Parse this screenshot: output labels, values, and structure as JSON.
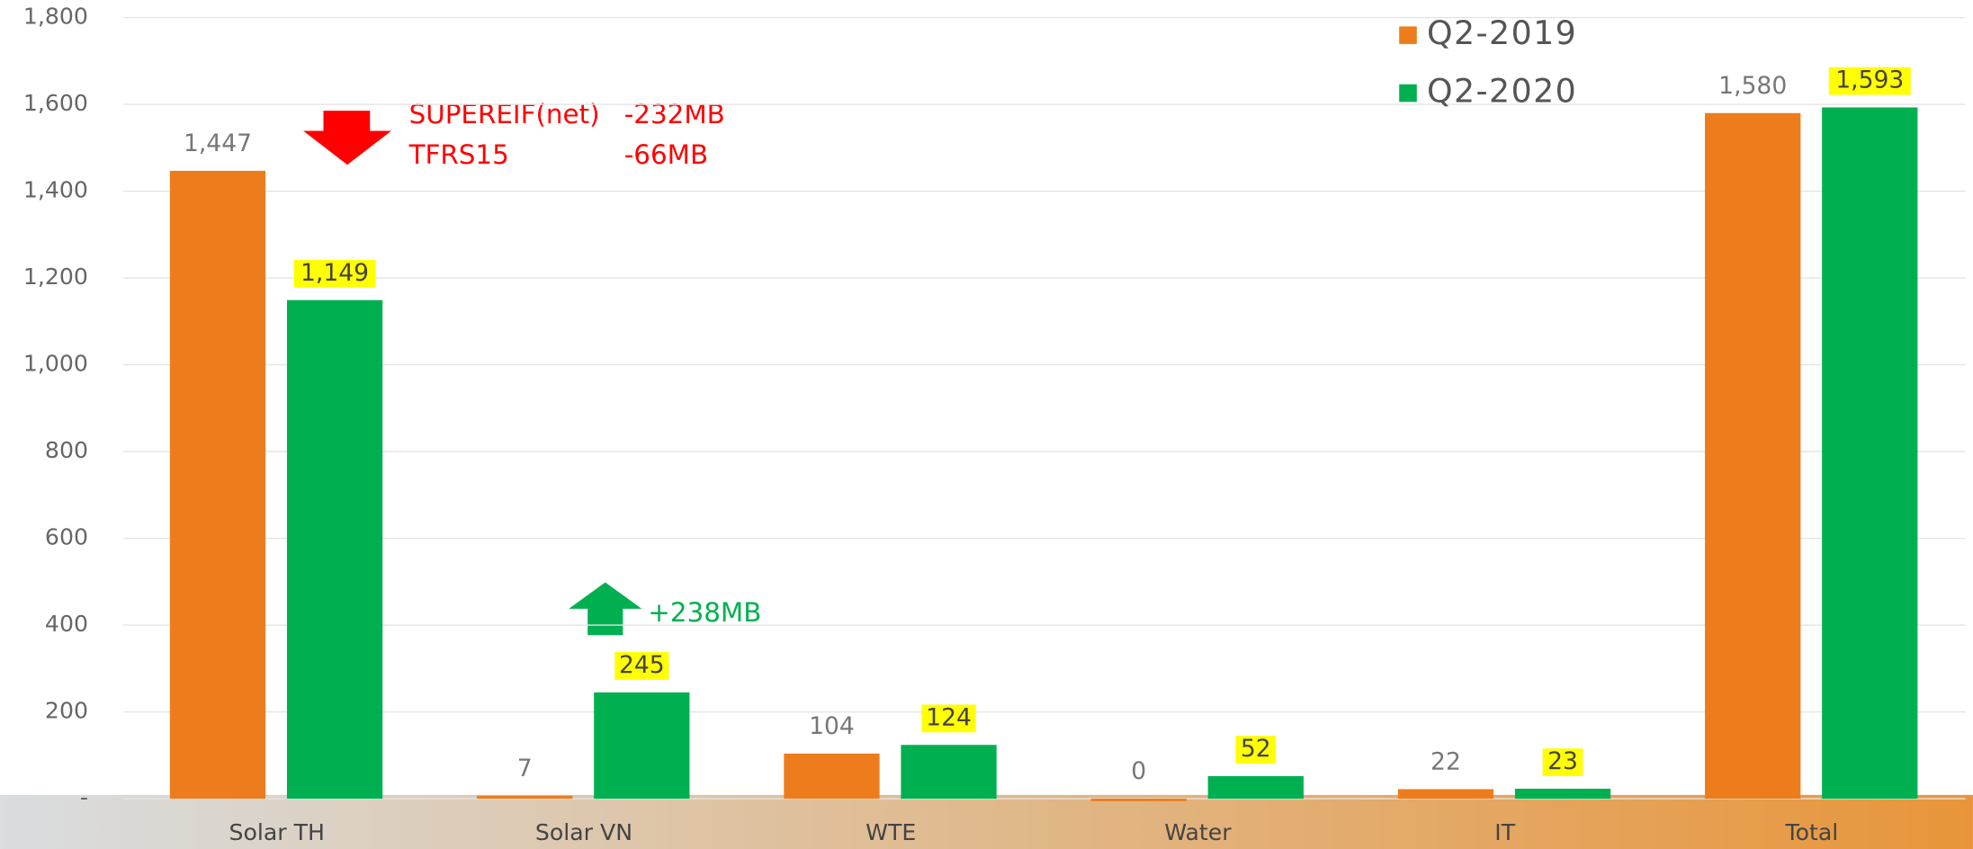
{
  "chart_data": {
    "type": "bar",
    "categories": [
      "Solar TH",
      "Solar VN",
      "WTE",
      "Water",
      "IT",
      "Total"
    ],
    "series": [
      {
        "name": "Q2-2019",
        "color": "#ed7d1c",
        "values": [
          1447,
          7,
          104,
          0,
          22,
          1580
        ],
        "value_labels": [
          "1,447",
          "7",
          "104",
          "0",
          "22",
          "1,580"
        ]
      },
      {
        "name": "Q2-2020",
        "color": "#00b050",
        "values": [
          1149,
          245,
          124,
          52,
          23,
          1593
        ],
        "value_labels": [
          "1,149",
          "245",
          "124",
          "52",
          "23",
          "1,593"
        ]
      }
    ],
    "ylim": [
      0,
      1800
    ],
    "yticks": [
      {
        "value": 0,
        "label": "-"
      },
      200,
      400,
      600,
      800,
      {
        "value": 1000,
        "label": "1,000"
      },
      {
        "value": 1200,
        "label": "1,200"
      },
      {
        "value": 1400,
        "label": "1,400"
      },
      {
        "value": 1600,
        "label": "1,600"
      },
      {
        "value": 1800,
        "label": "1,800"
      }
    ],
    "grid": true,
    "legend": "top-right",
    "annotations": [
      "SUPEREIF(net)",
      "-232MB",
      "TFRS15",
      "-66MB",
      "+238MB"
    ]
  }
}
